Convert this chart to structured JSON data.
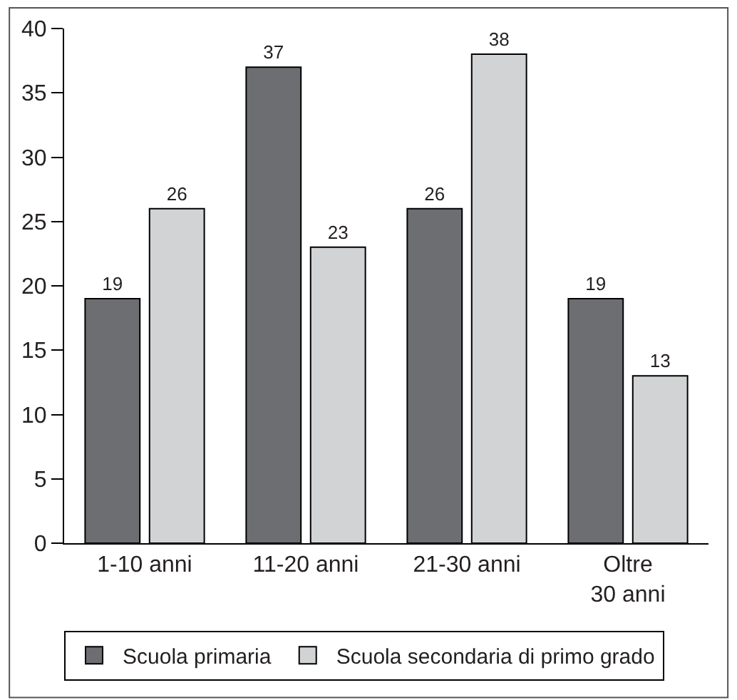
{
  "chart_data": {
    "type": "bar",
    "categories": [
      "1-10 anni",
      "11-20 anni",
      "21-30 anni",
      "Oltre 30 anni"
    ],
    "series": [
      {
        "name": "Scuola primaria",
        "color": "#6d6e71",
        "values": [
          19,
          37,
          26,
          19
        ]
      },
      {
        "name": "Scuola secondaria di primo grado",
        "color": "#d1d3d4",
        "values": [
          26,
          23,
          38,
          13
        ]
      }
    ],
    "ylim": [
      0,
      40
    ],
    "yticks": [
      0,
      5,
      10,
      15,
      20,
      25,
      30,
      35,
      40
    ],
    "data_labels": true,
    "legend": "bottom"
  }
}
